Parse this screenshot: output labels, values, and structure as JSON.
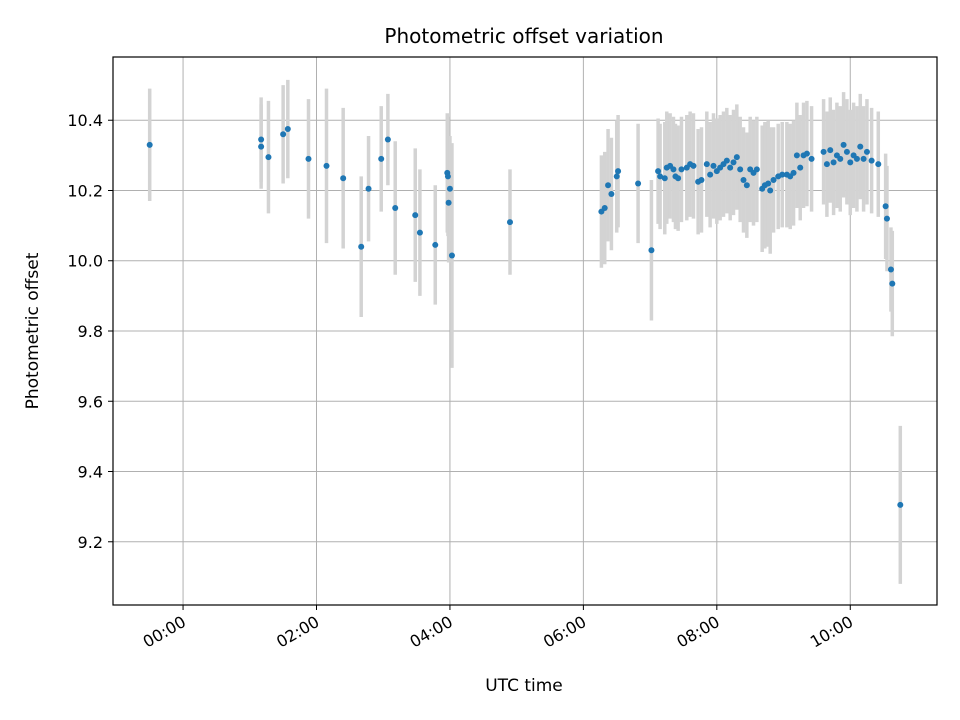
{
  "chart_data": {
    "type": "scatter",
    "title": "Photometric offset variation",
    "xlabel": "UTC time",
    "ylabel": "Photometric offset",
    "x_unit": "hours UTC",
    "xlim": [
      -1.05,
      11.3
    ],
    "ylim": [
      9.02,
      10.58
    ],
    "xticks": [
      {
        "value": 0,
        "label": "00:00"
      },
      {
        "value": 2,
        "label": "02:00"
      },
      {
        "value": 4,
        "label": "04:00"
      },
      {
        "value": 6,
        "label": "06:00"
      },
      {
        "value": 8,
        "label": "08:00"
      },
      {
        "value": 10,
        "label": "10:00"
      }
    ],
    "yticks": [
      {
        "value": 9.2,
        "label": "9.2"
      },
      {
        "value": 9.4,
        "label": "9.4"
      },
      {
        "value": 9.6,
        "label": "9.6"
      },
      {
        "value": 9.8,
        "label": "9.8"
      },
      {
        "value": 10.0,
        "label": "10.0"
      },
      {
        "value": 10.2,
        "label": "10.2"
      },
      {
        "value": 10.4,
        "label": "10.4"
      }
    ],
    "grid": true,
    "colors": {
      "point": "#1f77b4",
      "errorbar": "#d3d3d3",
      "grid": "#b0b0b0"
    },
    "series": [
      {
        "points": [
          [
            -0.5,
            10.33,
            0.16
          ],
          [
            1.17,
            10.345,
            0.12
          ],
          [
            1.17,
            10.325,
            0.12
          ],
          [
            1.28,
            10.295,
            0.16
          ],
          [
            1.5,
            10.36,
            0.14
          ],
          [
            1.57,
            10.375,
            0.14
          ],
          [
            1.88,
            10.29,
            0.17
          ],
          [
            2.15,
            10.27,
            0.22
          ],
          [
            2.4,
            10.235,
            0.2
          ],
          [
            2.67,
            10.04,
            0.2
          ],
          [
            2.78,
            10.205,
            0.15
          ],
          [
            2.97,
            10.29,
            0.15
          ],
          [
            3.07,
            10.345,
            0.13
          ],
          [
            3.18,
            10.15,
            0.19
          ],
          [
            3.48,
            10.13,
            0.19
          ],
          [
            3.55,
            10.08,
            0.18
          ],
          [
            3.78,
            10.045,
            0.17
          ],
          [
            3.96,
            10.25,
            0.17
          ],
          [
            3.97,
            10.24,
            0.17
          ],
          [
            3.98,
            10.165,
            0.17
          ],
          [
            4.0,
            10.205,
            0.15
          ],
          [
            4.03,
            10.015,
            0.32
          ],
          [
            4.9,
            10.11,
            0.15
          ],
          [
            6.27,
            10.14,
            0.16
          ],
          [
            6.32,
            10.15,
            0.16
          ],
          [
            6.37,
            10.215,
            0.16
          ],
          [
            6.42,
            10.19,
            0.16
          ],
          [
            6.5,
            10.24,
            0.16
          ],
          [
            6.52,
            10.255,
            0.16
          ],
          [
            6.82,
            10.22,
            0.17
          ],
          [
            7.02,
            10.03,
            0.2
          ],
          [
            7.12,
            10.255,
            0.15
          ],
          [
            7.15,
            10.24,
            0.15
          ],
          [
            7.22,
            10.235,
            0.16
          ],
          [
            7.25,
            10.265,
            0.16
          ],
          [
            7.3,
            10.27,
            0.15
          ],
          [
            7.35,
            10.26,
            0.15
          ],
          [
            7.38,
            10.24,
            0.15
          ],
          [
            7.42,
            10.235,
            0.15
          ],
          [
            7.47,
            10.26,
            0.15
          ],
          [
            7.55,
            10.265,
            0.15
          ],
          [
            7.6,
            10.275,
            0.15
          ],
          [
            7.65,
            10.27,
            0.15
          ],
          [
            7.72,
            10.225,
            0.15
          ],
          [
            7.77,
            10.23,
            0.15
          ],
          [
            7.85,
            10.275,
            0.15
          ],
          [
            7.9,
            10.245,
            0.15
          ],
          [
            7.95,
            10.27,
            0.15
          ],
          [
            8.0,
            10.255,
            0.15
          ],
          [
            8.05,
            10.265,
            0.15
          ],
          [
            8.1,
            10.275,
            0.15
          ],
          [
            8.15,
            10.285,
            0.15
          ],
          [
            8.2,
            10.265,
            0.15
          ],
          [
            8.25,
            10.28,
            0.15
          ],
          [
            8.3,
            10.295,
            0.15
          ],
          [
            8.35,
            10.26,
            0.15
          ],
          [
            8.4,
            10.23,
            0.15
          ],
          [
            8.45,
            10.215,
            0.15
          ],
          [
            8.5,
            10.26,
            0.15
          ],
          [
            8.55,
            10.25,
            0.15
          ],
          [
            8.6,
            10.26,
            0.15
          ],
          [
            8.68,
            10.205,
            0.18
          ],
          [
            8.72,
            10.215,
            0.18
          ],
          [
            8.77,
            10.22,
            0.18
          ],
          [
            8.8,
            10.2,
            0.18
          ],
          [
            8.85,
            10.23,
            0.15
          ],
          [
            8.92,
            10.24,
            0.15
          ],
          [
            8.98,
            10.245,
            0.15
          ],
          [
            9.05,
            10.245,
            0.15
          ],
          [
            9.1,
            10.24,
            0.15
          ],
          [
            9.15,
            10.25,
            0.15
          ],
          [
            9.2,
            10.3,
            0.15
          ],
          [
            9.25,
            10.265,
            0.15
          ],
          [
            9.3,
            10.3,
            0.15
          ],
          [
            9.35,
            10.305,
            0.15
          ],
          [
            9.42,
            10.29,
            0.15
          ],
          [
            9.6,
            10.31,
            0.15
          ],
          [
            9.65,
            10.275,
            0.15
          ],
          [
            9.7,
            10.315,
            0.15
          ],
          [
            9.75,
            10.28,
            0.15
          ],
          [
            9.8,
            10.3,
            0.15
          ],
          [
            9.85,
            10.29,
            0.15
          ],
          [
            9.9,
            10.33,
            0.15
          ],
          [
            9.95,
            10.31,
            0.15
          ],
          [
            10.0,
            10.28,
            0.15
          ],
          [
            10.05,
            10.3,
            0.15
          ],
          [
            10.1,
            10.29,
            0.15
          ],
          [
            10.15,
            10.325,
            0.15
          ],
          [
            10.2,
            10.29,
            0.15
          ],
          [
            10.25,
            10.31,
            0.15
          ],
          [
            10.32,
            10.285,
            0.15
          ],
          [
            10.42,
            10.275,
            0.15
          ],
          [
            10.53,
            10.155,
            0.15
          ],
          [
            10.55,
            10.12,
            0.15
          ],
          [
            10.61,
            9.975,
            0.12
          ],
          [
            10.63,
            9.935,
            0.15
          ],
          [
            10.75,
            9.305,
            0.225
          ]
        ]
      }
    ]
  }
}
